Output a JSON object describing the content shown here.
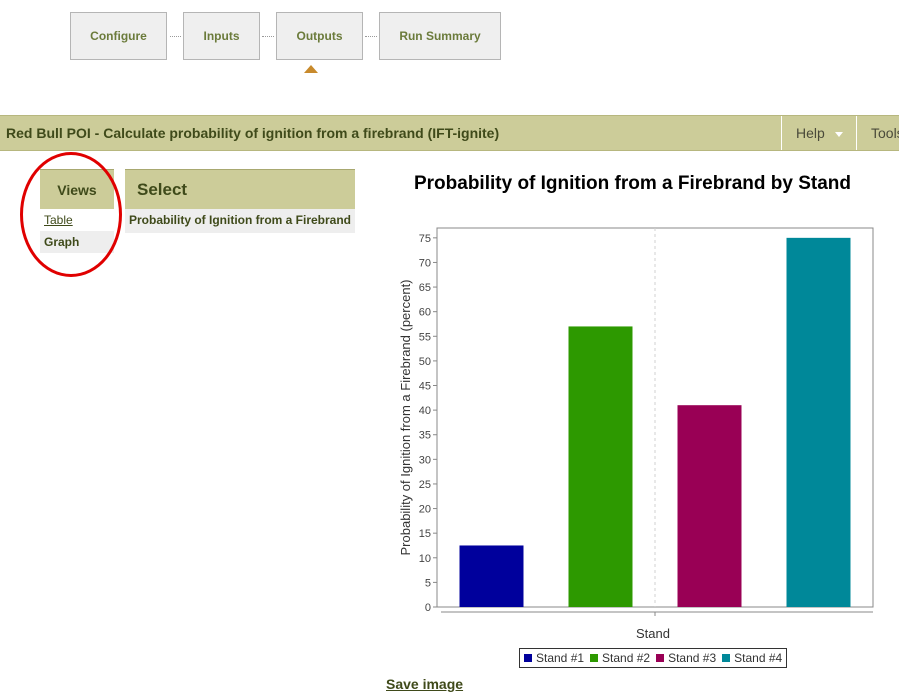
{
  "wizard": {
    "steps": [
      {
        "label": "Configure"
      },
      {
        "label": "Inputs"
      },
      {
        "label": "Outputs"
      },
      {
        "label": "Run Summary"
      }
    ],
    "active_step": "Outputs"
  },
  "titlebar": {
    "title": "Red Bull POI - Calculate probability of ignition from a firebrand (IFT-ignite)",
    "menu": [
      {
        "label": "Help"
      },
      {
        "label": "Tools"
      }
    ]
  },
  "views": {
    "header": "Views",
    "items": [
      {
        "label": "Table",
        "active": false
      },
      {
        "label": "Graph",
        "active": true
      }
    ]
  },
  "select": {
    "header": "Select",
    "items": [
      {
        "label": "Probability of Ignition from a Firebrand"
      }
    ]
  },
  "chart_data": {
    "type": "bar",
    "title": "Probability of Ignition from a Firebrand by Stand",
    "xlabel": "Stand",
    "ylabel": "Probability of Ignition from a Firebrand (percent)",
    "ylim": [
      0,
      77
    ],
    "yticks": [
      0,
      5,
      10,
      15,
      20,
      25,
      30,
      35,
      40,
      45,
      50,
      55,
      60,
      65,
      70,
      75
    ],
    "grid": false,
    "legend_position": "bottom",
    "series": [
      {
        "name": "Stand #1",
        "value": 12.5,
        "color": "#00009c"
      },
      {
        "name": "Stand #2",
        "value": 57,
        "color": "#2d9900"
      },
      {
        "name": "Stand #3",
        "value": 41,
        "color": "#990055"
      },
      {
        "name": "Stand #4",
        "value": 75,
        "color": "#008899"
      }
    ]
  },
  "save_image_label": "Save image"
}
